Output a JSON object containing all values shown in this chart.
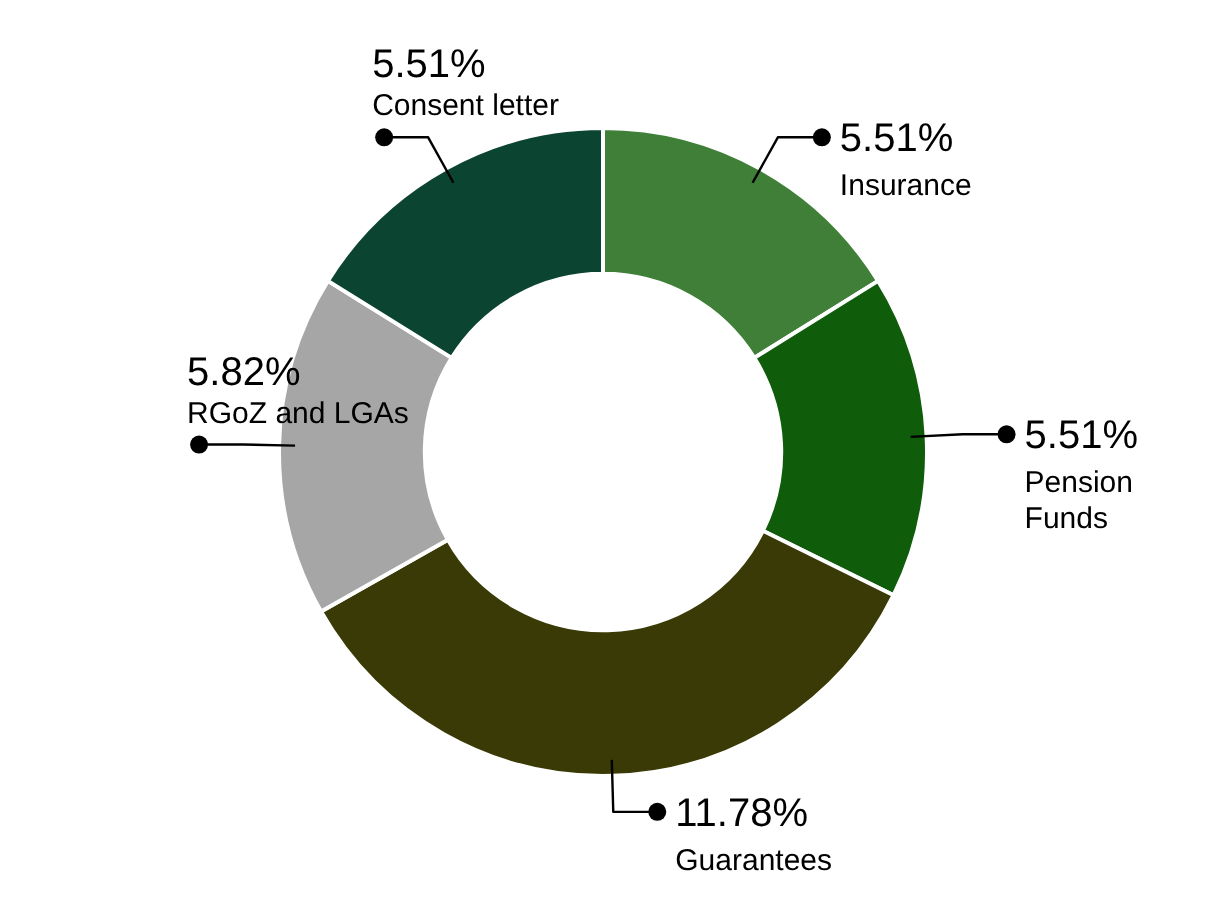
{
  "chart_data": {
    "type": "donut",
    "categories": [
      "Insurance",
      "Pension Funds",
      "Guarantees",
      "RGoZ and LGAs",
      "Consent letter"
    ],
    "values": [
      5.51,
      5.51,
      11.78,
      5.82,
      5.51
    ],
    "value_labels": [
      "5.51%",
      "5.51%",
      "11.78%",
      "5.82%",
      "5.51%"
    ],
    "colors": [
      "#3f7f38",
      "#0f5c0a",
      "#3a3a06",
      "#a6a6a6",
      "#0b4430"
    ],
    "legend": false
  }
}
